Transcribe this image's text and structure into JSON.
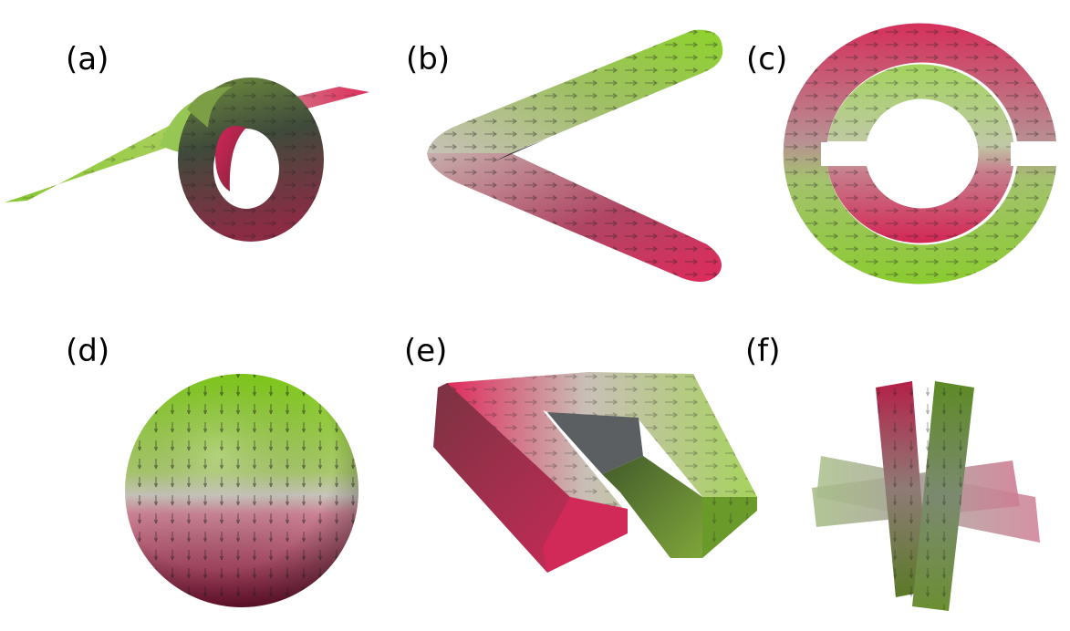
{
  "panels": [
    {
      "label": "(a)"
    },
    {
      "label": "(b)"
    },
    {
      "label": "(c)"
    },
    {
      "label": "(d)"
    },
    {
      "label": "(e)"
    },
    {
      "label": "(f)"
    }
  ],
  "colors": {
    "green": "#8ccd2a",
    "red": "#d82657",
    "neutral": "#c8c4bd",
    "dark_green": "#4f6e22",
    "dark_red": "#6a2430",
    "shadow": "#555a5c",
    "arrow": "#1e1e1e"
  }
}
